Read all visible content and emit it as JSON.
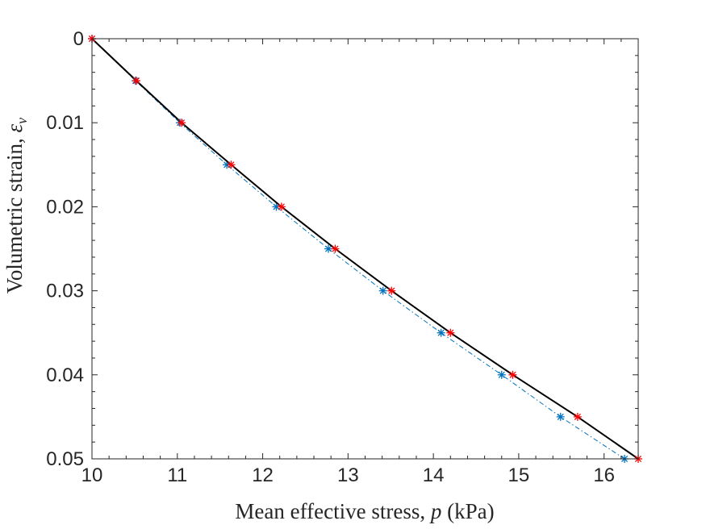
{
  "chart_data": {
    "type": "line",
    "title": "",
    "xlabel": "Mean effective stress, p (kPa)",
    "xlabel_parts": {
      "before": "Mean effective stress, ",
      "symbol": "p",
      "after": " (kPa)"
    },
    "ylabel": "Volumetric strain, εv",
    "ylabel_parts": {
      "before": "Volumetric strain, ",
      "symbol": "ε",
      "subscript": "v"
    },
    "xlim": [
      10,
      16.4
    ],
    "ylim": [
      0,
      0.05
    ],
    "y_reversed": true,
    "grid": false,
    "box": true,
    "x_ticks": [
      10,
      11,
      12,
      13,
      14,
      15,
      16
    ],
    "x_tick_labels": [
      "10",
      "11",
      "12",
      "13",
      "14",
      "15",
      "16"
    ],
    "y_ticks": [
      0,
      0.01,
      0.02,
      0.03,
      0.04,
      0.05
    ],
    "y_tick_labels": [
      "0",
      "0.01",
      "0.02",
      "0.03",
      "0.04",
      "0.05"
    ],
    "series": [
      {
        "style": "solid",
        "color": "#000000",
        "marker": "none",
        "x": [
          10,
          10.52,
          11.05,
          11.63,
          12.22,
          12.85,
          13.51,
          14.2,
          14.93,
          15.69,
          16.4
        ],
        "y": [
          0,
          0.005,
          0.01,
          0.015,
          0.02,
          0.025,
          0.03,
          0.035,
          0.04,
          0.045,
          0.05
        ]
      },
      {
        "style": "dashdot",
        "color": "#0072BD",
        "marker": "asterisk",
        "x": [
          10,
          10.51,
          11.03,
          11.58,
          12.16,
          12.77,
          13.41,
          14.09,
          14.8,
          15.49,
          16.24
        ],
        "y": [
          0,
          0.005,
          0.01,
          0.015,
          0.02,
          0.025,
          0.03,
          0.035,
          0.04,
          0.045,
          0.05
        ]
      },
      {
        "style": "none",
        "color": "#FF0000",
        "marker": "asterisk",
        "x": [
          10,
          10.52,
          11.05,
          11.63,
          12.22,
          12.85,
          13.51,
          14.2,
          14.93,
          15.69,
          16.4
        ],
        "y": [
          0,
          0.005,
          0.01,
          0.015,
          0.02,
          0.025,
          0.03,
          0.035,
          0.04,
          0.045,
          0.05
        ]
      }
    ]
  }
}
